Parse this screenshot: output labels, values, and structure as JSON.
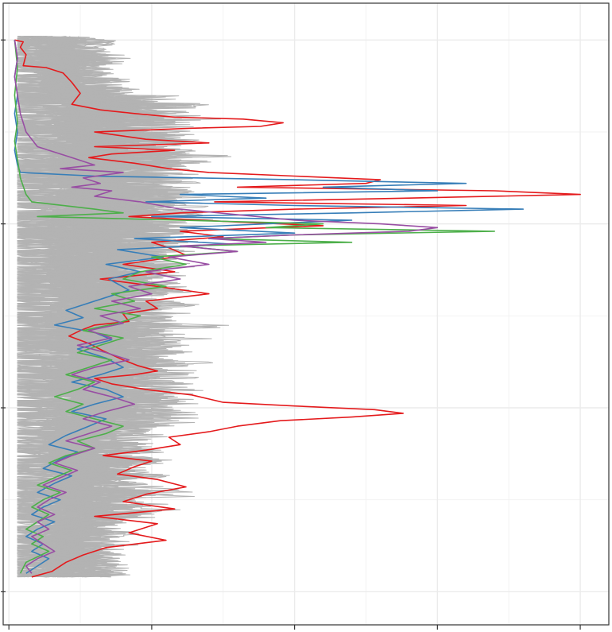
{
  "chart_data": {
    "type": "line",
    "title": "",
    "xlabel": "",
    "ylabel": "",
    "orientation": "vertical-profile",
    "xlim": [
      -0.02,
      2.1
    ],
    "ylim": [
      0.32,
      3.7
    ],
    "x_major_ticks": [
      0,
      0.5,
      1.0,
      1.5,
      2.0
    ],
    "y_major_ticks": [
      0.5,
      1.5,
      2.5,
      3.5
    ],
    "tick_labels_visible": false,
    "grid": true,
    "legend": "none",
    "colors": {
      "background_traces": "#b3b3b3",
      "grid": "#ebebeb",
      "frame": "#333333"
    },
    "background_trace_count": 40,
    "series": [
      {
        "color": "#e41a1c",
        "points": [
          [
            0.02,
            3.5
          ],
          [
            0.05,
            3.49
          ],
          [
            0.04,
            3.46
          ],
          [
            0.06,
            3.42
          ],
          [
            0.05,
            3.36
          ],
          [
            0.13,
            3.35
          ],
          [
            0.19,
            3.32
          ],
          [
            0.22,
            3.27
          ],
          [
            0.25,
            3.21
          ],
          [
            0.22,
            3.15
          ],
          [
            0.32,
            3.12
          ],
          [
            0.44,
            3.1
          ],
          [
            0.58,
            3.08
          ],
          [
            0.82,
            3.07
          ],
          [
            0.96,
            3.05
          ],
          [
            0.88,
            3.03
          ],
          [
            0.64,
            3.02
          ],
          [
            0.3,
            3.0
          ],
          [
            0.48,
            2.96
          ],
          [
            0.7,
            2.94
          ],
          [
            0.3,
            2.92
          ],
          [
            0.58,
            2.9
          ],
          [
            0.36,
            2.88
          ],
          [
            0.28,
            2.86
          ],
          [
            0.44,
            2.83
          ],
          [
            0.56,
            2.8
          ],
          [
            0.7,
            2.78
          ],
          [
            1.0,
            2.76
          ],
          [
            1.3,
            2.74
          ],
          [
            1.25,
            2.72
          ],
          [
            0.8,
            2.7
          ],
          [
            1.7,
            2.68
          ],
          [
            2.0,
            2.66
          ],
          [
            1.4,
            2.64
          ],
          [
            0.72,
            2.62
          ],
          [
            1.6,
            2.6
          ],
          [
            1.0,
            2.58
          ],
          [
            0.6,
            2.56
          ],
          [
            0.42,
            2.54
          ],
          [
            0.8,
            2.51
          ],
          [
            1.1,
            2.49
          ],
          [
            0.6,
            2.46
          ],
          [
            0.75,
            2.43
          ],
          [
            0.5,
            2.4
          ],
          [
            0.56,
            2.37
          ],
          [
            0.62,
            2.33
          ],
          [
            0.4,
            2.28
          ],
          [
            0.58,
            2.24
          ],
          [
            0.32,
            2.2
          ],
          [
            0.52,
            2.16
          ],
          [
            0.7,
            2.12
          ],
          [
            0.48,
            2.08
          ],
          [
            0.52,
            2.04
          ],
          [
            0.4,
            2.01
          ],
          [
            0.42,
            1.97
          ],
          [
            0.3,
            1.95
          ],
          [
            0.25,
            1.92
          ],
          [
            0.21,
            1.89
          ],
          [
            0.28,
            1.85
          ],
          [
            0.33,
            1.81
          ],
          [
            0.4,
            1.76
          ],
          [
            0.45,
            1.73
          ],
          [
            0.52,
            1.7
          ],
          [
            0.44,
            1.68
          ],
          [
            0.3,
            1.66
          ],
          [
            0.36,
            1.63
          ],
          [
            0.48,
            1.6
          ],
          [
            0.64,
            1.57
          ],
          [
            0.75,
            1.53
          ],
          [
            1.0,
            1.51
          ],
          [
            1.28,
            1.49
          ],
          [
            1.38,
            1.47
          ],
          [
            1.2,
            1.45
          ],
          [
            0.95,
            1.43
          ],
          [
            0.8,
            1.4
          ],
          [
            0.7,
            1.37
          ],
          [
            0.56,
            1.34
          ],
          [
            0.6,
            1.3
          ],
          [
            0.48,
            1.27
          ],
          [
            0.33,
            1.24
          ],
          [
            0.5,
            1.21
          ],
          [
            0.44,
            1.18
          ],
          [
            0.38,
            1.14
          ],
          [
            0.52,
            1.11
          ],
          [
            0.62,
            1.07
          ],
          [
            0.48,
            1.03
          ],
          [
            0.4,
            0.99
          ],
          [
            0.58,
            0.95
          ],
          [
            0.3,
            0.91
          ],
          [
            0.52,
            0.87
          ],
          [
            0.42,
            0.82
          ],
          [
            0.55,
            0.78
          ],
          [
            0.34,
            0.74
          ],
          [
            0.26,
            0.7
          ],
          [
            0.2,
            0.66
          ],
          [
            0.15,
            0.61
          ],
          [
            0.08,
            0.58
          ]
        ]
      },
      {
        "color": "#377eb8",
        "points": [
          [
            0.02,
            3.5
          ],
          [
            0.03,
            3.4
          ],
          [
            0.02,
            3.3
          ],
          [
            0.03,
            3.2
          ],
          [
            0.02,
            3.1
          ],
          [
            0.03,
            3.0
          ],
          [
            0.02,
            2.9
          ],
          [
            0.03,
            2.82
          ],
          [
            0.04,
            2.78
          ],
          [
            0.3,
            2.76
          ],
          [
            1.0,
            2.74
          ],
          [
            1.6,
            2.72
          ],
          [
            1.1,
            2.7
          ],
          [
            1.5,
            2.68
          ],
          [
            0.6,
            2.66
          ],
          [
            0.9,
            2.64
          ],
          [
            0.48,
            2.62
          ],
          [
            1.0,
            2.6
          ],
          [
            1.8,
            2.58
          ],
          [
            1.2,
            2.56
          ],
          [
            0.5,
            2.54
          ],
          [
            1.2,
            2.52
          ],
          [
            0.6,
            2.48
          ],
          [
            1.0,
            2.45
          ],
          [
            0.44,
            2.42
          ],
          [
            0.78,
            2.39
          ],
          [
            0.38,
            2.36
          ],
          [
            0.54,
            2.32
          ],
          [
            0.34,
            2.28
          ],
          [
            0.46,
            2.24
          ],
          [
            0.35,
            2.2
          ],
          [
            0.42,
            2.14
          ],
          [
            0.3,
            2.08
          ],
          [
            0.2,
            2.03
          ],
          [
            0.26,
            1.99
          ],
          [
            0.16,
            1.95
          ],
          [
            0.3,
            1.91
          ],
          [
            0.36,
            1.87
          ],
          [
            0.24,
            1.82
          ],
          [
            0.34,
            1.77
          ],
          [
            0.4,
            1.72
          ],
          [
            0.32,
            1.68
          ],
          [
            0.22,
            1.64
          ],
          [
            0.34,
            1.6
          ],
          [
            0.4,
            1.56
          ],
          [
            0.3,
            1.52
          ],
          [
            0.22,
            1.48
          ],
          [
            0.34,
            1.44
          ],
          [
            0.28,
            1.4
          ],
          [
            0.2,
            1.35
          ],
          [
            0.14,
            1.3
          ],
          [
            0.24,
            1.26
          ],
          [
            0.18,
            1.22
          ],
          [
            0.12,
            1.17
          ],
          [
            0.22,
            1.13
          ],
          [
            0.16,
            1.09
          ],
          [
            0.1,
            1.04
          ],
          [
            0.18,
            1.0
          ],
          [
            0.12,
            0.96
          ],
          [
            0.08,
            0.92
          ],
          [
            0.16,
            0.88
          ],
          [
            0.1,
            0.84
          ],
          [
            0.06,
            0.8
          ],
          [
            0.12,
            0.76
          ],
          [
            0.08,
            0.72
          ],
          [
            0.14,
            0.68
          ],
          [
            0.1,
            0.64
          ],
          [
            0.06,
            0.6
          ]
        ]
      },
      {
        "color": "#4daf4a",
        "points": [
          [
            0.02,
            3.5
          ],
          [
            0.03,
            3.35
          ],
          [
            0.02,
            3.2
          ],
          [
            0.03,
            3.05
          ],
          [
            0.02,
            2.95
          ],
          [
            0.03,
            2.85
          ],
          [
            0.04,
            2.75
          ],
          [
            0.06,
            2.66
          ],
          [
            0.08,
            2.62
          ],
          [
            0.3,
            2.58
          ],
          [
            0.4,
            2.56
          ],
          [
            0.1,
            2.54
          ],
          [
            0.6,
            2.52
          ],
          [
            1.1,
            2.5
          ],
          [
            0.9,
            2.48
          ],
          [
            1.7,
            2.46
          ],
          [
            1.0,
            2.44
          ],
          [
            0.7,
            2.42
          ],
          [
            1.2,
            2.4
          ],
          [
            0.6,
            2.38
          ],
          [
            0.8,
            2.35
          ],
          [
            0.5,
            2.32
          ],
          [
            0.62,
            2.28
          ],
          [
            0.46,
            2.24
          ],
          [
            0.4,
            2.2
          ],
          [
            0.55,
            2.16
          ],
          [
            0.36,
            2.12
          ],
          [
            0.44,
            2.08
          ],
          [
            0.3,
            2.04
          ],
          [
            0.46,
            2.0
          ],
          [
            0.38,
            1.96
          ],
          [
            0.26,
            1.92
          ],
          [
            0.4,
            1.88
          ],
          [
            0.32,
            1.84
          ],
          [
            0.24,
            1.8
          ],
          [
            0.36,
            1.76
          ],
          [
            0.28,
            1.72
          ],
          [
            0.2,
            1.68
          ],
          [
            0.3,
            1.64
          ],
          [
            0.24,
            1.6
          ],
          [
            0.16,
            1.56
          ],
          [
            0.26,
            1.52
          ],
          [
            0.2,
            1.48
          ],
          [
            0.3,
            1.44
          ],
          [
            0.4,
            1.4
          ],
          [
            0.34,
            1.36
          ],
          [
            0.24,
            1.32
          ],
          [
            0.3,
            1.28
          ],
          [
            0.2,
            1.24
          ],
          [
            0.14,
            1.2
          ],
          [
            0.22,
            1.16
          ],
          [
            0.16,
            1.12
          ],
          [
            0.1,
            1.08
          ],
          [
            0.18,
            1.04
          ],
          [
            0.12,
            1.0
          ],
          [
            0.08,
            0.96
          ],
          [
            0.14,
            0.92
          ],
          [
            0.1,
            0.88
          ],
          [
            0.06,
            0.84
          ],
          [
            0.12,
            0.8
          ],
          [
            0.08,
            0.76
          ],
          [
            0.14,
            0.72
          ],
          [
            0.06,
            0.66
          ],
          [
            0.04,
            0.6
          ]
        ]
      },
      {
        "color": "#984ea3",
        "points": [
          [
            0.02,
            3.5
          ],
          [
            0.03,
            3.4
          ],
          [
            0.02,
            3.3
          ],
          [
            0.03,
            3.2
          ],
          [
            0.04,
            3.1
          ],
          [
            0.06,
            3.0
          ],
          [
            0.1,
            2.92
          ],
          [
            0.22,
            2.86
          ],
          [
            0.3,
            2.82
          ],
          [
            0.18,
            2.8
          ],
          [
            0.4,
            2.78
          ],
          [
            0.26,
            2.75
          ],
          [
            0.32,
            2.72
          ],
          [
            0.22,
            2.7
          ],
          [
            0.36,
            2.68
          ],
          [
            0.3,
            2.65
          ],
          [
            0.46,
            2.62
          ],
          [
            0.6,
            2.58
          ],
          [
            0.8,
            2.55
          ],
          [
            1.0,
            2.52
          ],
          [
            1.3,
            2.5
          ],
          [
            1.5,
            2.48
          ],
          [
            1.4,
            2.46
          ],
          [
            1.0,
            2.44
          ],
          [
            0.7,
            2.42
          ],
          [
            0.9,
            2.4
          ],
          [
            0.6,
            2.38
          ],
          [
            0.8,
            2.35
          ],
          [
            0.56,
            2.32
          ],
          [
            0.7,
            2.28
          ],
          [
            0.48,
            2.24
          ],
          [
            0.6,
            2.2
          ],
          [
            0.42,
            2.16
          ],
          [
            0.5,
            2.12
          ],
          [
            0.36,
            2.08
          ],
          [
            0.46,
            2.04
          ],
          [
            0.32,
            2.0
          ],
          [
            0.4,
            1.96
          ],
          [
            0.28,
            1.92
          ],
          [
            0.36,
            1.88
          ],
          [
            0.24,
            1.84
          ],
          [
            0.34,
            1.8
          ],
          [
            0.42,
            1.76
          ],
          [
            0.3,
            1.72
          ],
          [
            0.22,
            1.68
          ],
          [
            0.32,
            1.64
          ],
          [
            0.26,
            1.6
          ],
          [
            0.36,
            1.56
          ],
          [
            0.44,
            1.52
          ],
          [
            0.34,
            1.48
          ],
          [
            0.26,
            1.44
          ],
          [
            0.36,
            1.4
          ],
          [
            0.28,
            1.36
          ],
          [
            0.2,
            1.32
          ],
          [
            0.3,
            1.28
          ],
          [
            0.22,
            1.24
          ],
          [
            0.16,
            1.2
          ],
          [
            0.24,
            1.16
          ],
          [
            0.18,
            1.12
          ],
          [
            0.12,
            1.08
          ],
          [
            0.2,
            1.04
          ],
          [
            0.14,
            1.0
          ],
          [
            0.1,
            0.96
          ],
          [
            0.16,
            0.92
          ],
          [
            0.1,
            0.88
          ],
          [
            0.14,
            0.84
          ],
          [
            0.08,
            0.8
          ],
          [
            0.12,
            0.76
          ],
          [
            0.16,
            0.72
          ],
          [
            0.1,
            0.68
          ],
          [
            0.06,
            0.64
          ],
          [
            0.08,
            0.6
          ]
        ]
      }
    ]
  }
}
